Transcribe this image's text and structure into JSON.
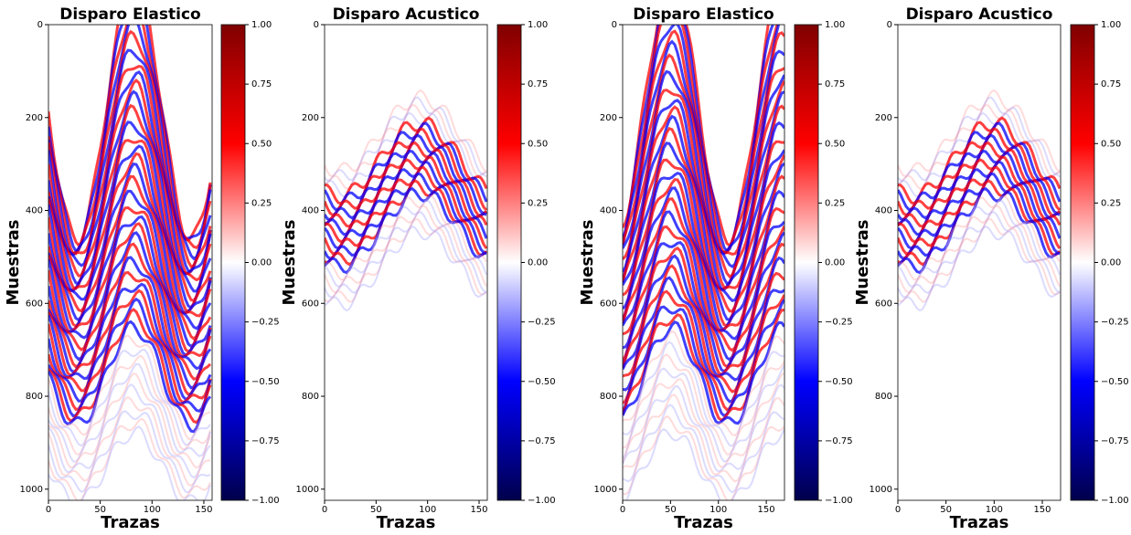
{
  "chart_data": [
    {
      "type": "heatmap",
      "title": "Disparo Elastico",
      "xlabel": "Trazas",
      "ylabel": "Muestras",
      "xlim": [
        0,
        158
      ],
      "xticks": [
        0,
        50,
        100,
        150
      ],
      "ylim": [
        0,
        1024
      ],
      "yticks": [
        0,
        200,
        400,
        600,
        800,
        1000
      ],
      "y_inverted": true,
      "colorbar": {
        "lim": [
          -1,
          1
        ],
        "colors": [
          "#00004c",
          "#0000ff",
          "#ffffff",
          "#ff0000",
          "#800000"
        ],
        "ticks": [
          {
            "value": -1,
            "label": "−1.00"
          },
          {
            "value": -0.75,
            "label": "−0.75"
          },
          {
            "value": -0.5,
            "label": "−0.50"
          },
          {
            "value": -0.25,
            "label": "−0.25"
          },
          {
            "value": 0,
            "label": "0.00"
          },
          {
            "value": 0.25,
            "label": "0.25"
          },
          {
            "value": 0.5,
            "label": "0.50"
          },
          {
            "value": 0.75,
            "label": "0.75"
          },
          {
            "value": 1,
            "label": "1.00"
          }
        ]
      }
    },
    {
      "type": "heatmap",
      "title": "Disparo Acustico",
      "xlabel": "Trazas",
      "ylabel": "Muestras",
      "xlim": [
        0,
        158
      ],
      "xticks": [
        0,
        50,
        100,
        150
      ],
      "ylim": [
        0,
        1024
      ],
      "yticks": [
        0,
        200,
        400,
        600,
        800,
        1000
      ],
      "y_inverted": true,
      "colorbar": {
        "lim": [
          -1,
          1
        ],
        "colors": [
          "#00004c",
          "#0000ff",
          "#ffffff",
          "#ff0000",
          "#800000"
        ],
        "ticks": [
          {
            "value": -1,
            "label": "−1.00"
          },
          {
            "value": -0.75,
            "label": "−0.75"
          },
          {
            "value": -0.5,
            "label": "−0.50"
          },
          {
            "value": -0.25,
            "label": "−0.25"
          },
          {
            "value": 0,
            "label": "0.00"
          },
          {
            "value": 0.25,
            "label": "0.25"
          },
          {
            "value": 0.5,
            "label": "0.50"
          },
          {
            "value": 0.75,
            "label": "0.75"
          },
          {
            "value": 1,
            "label": "1.00"
          }
        ]
      }
    },
    {
      "type": "heatmap",
      "title": "Disparo Elastico",
      "xlabel": "Trazas",
      "ylabel": "Muestras",
      "xlim": [
        0,
        169
      ],
      "xticks": [
        0,
        50,
        100,
        150
      ],
      "ylim": [
        0,
        1024
      ],
      "yticks": [
        0,
        200,
        400,
        600,
        800,
        1000
      ],
      "y_inverted": true,
      "colorbar": {
        "lim": [
          -1,
          1
        ],
        "colors": [
          "#00004c",
          "#0000ff",
          "#ffffff",
          "#ff0000",
          "#800000"
        ],
        "ticks": [
          {
            "value": -1,
            "label": "−1.00"
          },
          {
            "value": -0.75,
            "label": "−0.75"
          },
          {
            "value": -0.5,
            "label": "−0.50"
          },
          {
            "value": -0.25,
            "label": "−0.25"
          },
          {
            "value": 0,
            "label": "0.00"
          },
          {
            "value": 0.25,
            "label": "0.25"
          },
          {
            "value": 0.5,
            "label": "0.50"
          },
          {
            "value": 0.75,
            "label": "0.75"
          },
          {
            "value": 1,
            "label": "1.00"
          }
        ]
      }
    },
    {
      "type": "heatmap",
      "title": "Disparo Acustico",
      "xlabel": "Trazas",
      "ylabel": "Muestras",
      "xlim": [
        0,
        169
      ],
      "xticks": [
        0,
        50,
        100,
        150
      ],
      "ylim": [
        0,
        1024
      ],
      "yticks": [
        0,
        200,
        400,
        600,
        800,
        1000
      ],
      "y_inverted": true,
      "colorbar": {
        "lim": [
          -1,
          1
        ],
        "colors": [
          "#00004c",
          "#0000ff",
          "#ffffff",
          "#ff0000",
          "#800000"
        ],
        "ticks": [
          {
            "value": -1,
            "label": "−1.00"
          },
          {
            "value": -0.75,
            "label": "−0.75"
          },
          {
            "value": -0.5,
            "label": "−0.50"
          },
          {
            "value": -0.25,
            "label": "−0.25"
          },
          {
            "value": 0,
            "label": "0.00"
          },
          {
            "value": 0.25,
            "label": "0.25"
          },
          {
            "value": 0.5,
            "label": "0.50"
          },
          {
            "value": 0.75,
            "label": "0.75"
          },
          {
            "value": 1,
            "label": "1.00"
          }
        ]
      }
    }
  ]
}
